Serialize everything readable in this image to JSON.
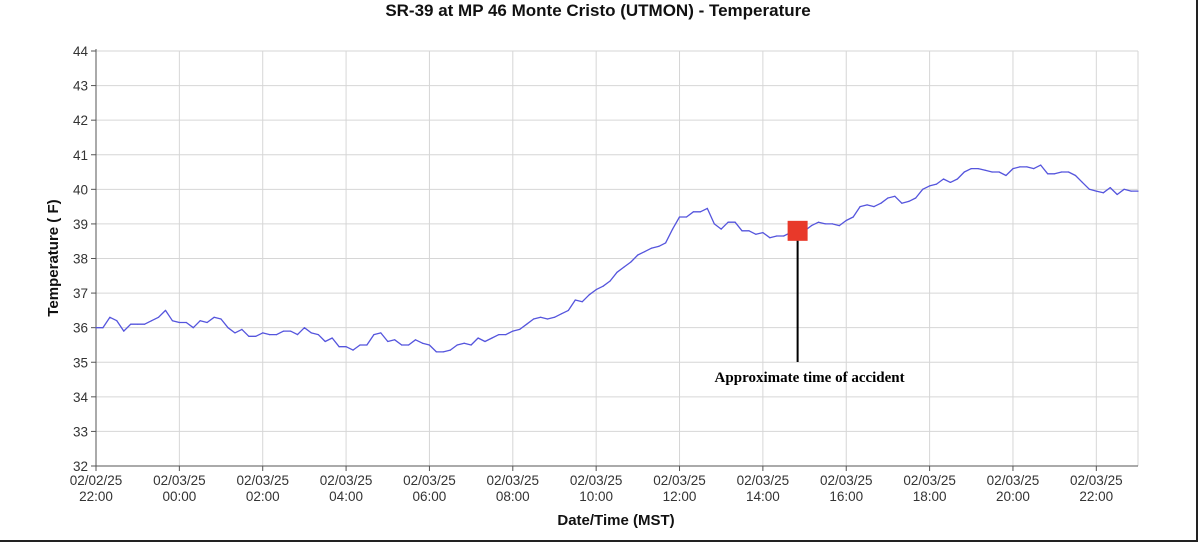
{
  "chart_data": {
    "type": "line",
    "title": "SR-39 at MP 46 Monte Cristo (UTMON) - Temperature",
    "xlabel": "Date/Time (MST)",
    "ylabel": "Temperature ( F)",
    "ylim": [
      32,
      44
    ],
    "xlim": [
      "02/02/25 22:00",
      "02/03/25 23:00"
    ],
    "grid": true,
    "yticks": [
      "32",
      "33",
      "34",
      "35",
      "36",
      "37",
      "38",
      "39",
      "40",
      "41",
      "42",
      "43",
      "44"
    ],
    "xticks": [
      {
        "date": "02/02/25",
        "time": "22:00"
      },
      {
        "date": "02/03/25",
        "time": "00:00"
      },
      {
        "date": "02/03/25",
        "time": "02:00"
      },
      {
        "date": "02/03/25",
        "time": "04:00"
      },
      {
        "date": "02/03/25",
        "time": "06:00"
      },
      {
        "date": "02/03/25",
        "time": "08:00"
      },
      {
        "date": "02/03/25",
        "time": "10:00"
      },
      {
        "date": "02/03/25",
        "time": "12:00"
      },
      {
        "date": "02/03/25",
        "time": "14:00"
      },
      {
        "date": "02/03/25",
        "time": "16:00"
      },
      {
        "date": "02/03/25",
        "time": "18:00"
      },
      {
        "date": "02/03/25",
        "time": "20:00"
      },
      {
        "date": "02/03/25",
        "time": "22:00"
      }
    ],
    "series": [
      {
        "color": "#5555dd",
        "points": [
          [
            "02/02/25 22:00",
            36.0
          ],
          [
            "02/02/25 22:10",
            36.0
          ],
          [
            "02/02/25 22:20",
            36.3
          ],
          [
            "02/02/25 22:30",
            36.2
          ],
          [
            "02/02/25 22:40",
            35.9
          ],
          [
            "02/02/25 22:50",
            36.1
          ],
          [
            "02/02/25 23:00",
            36.1
          ],
          [
            "02/02/25 23:10",
            36.1
          ],
          [
            "02/02/25 23:20",
            36.2
          ],
          [
            "02/02/25 23:30",
            36.3
          ],
          [
            "02/02/25 23:40",
            36.5
          ],
          [
            "02/02/25 23:50",
            36.2
          ],
          [
            "02/03/25 00:00",
            36.15
          ],
          [
            "02/03/25 00:10",
            36.15
          ],
          [
            "02/03/25 00:20",
            36.0
          ],
          [
            "02/03/25 00:30",
            36.2
          ],
          [
            "02/03/25 00:40",
            36.15
          ],
          [
            "02/03/25 00:50",
            36.3
          ],
          [
            "02/03/25 01:00",
            36.25
          ],
          [
            "02/03/25 01:10",
            36.0
          ],
          [
            "02/03/25 01:20",
            35.85
          ],
          [
            "02/03/25 01:30",
            35.95
          ],
          [
            "02/03/25 01:40",
            35.75
          ],
          [
            "02/03/25 01:50",
            35.75
          ],
          [
            "02/03/25 02:00",
            35.85
          ],
          [
            "02/03/25 02:10",
            35.8
          ],
          [
            "02/03/25 02:20",
            35.8
          ],
          [
            "02/03/25 02:30",
            35.9
          ],
          [
            "02/03/25 02:40",
            35.9
          ],
          [
            "02/03/25 02:50",
            35.8
          ],
          [
            "02/03/25 03:00",
            36.0
          ],
          [
            "02/03/25 03:10",
            35.85
          ],
          [
            "02/03/25 03:20",
            35.8
          ],
          [
            "02/03/25 03:30",
            35.6
          ],
          [
            "02/03/25 03:40",
            35.7
          ],
          [
            "02/03/25 03:50",
            35.45
          ],
          [
            "02/03/25 04:00",
            35.45
          ],
          [
            "02/03/25 04:10",
            35.35
          ],
          [
            "02/03/25 04:20",
            35.5
          ],
          [
            "02/03/25 04:30",
            35.5
          ],
          [
            "02/03/25 04:40",
            35.8
          ],
          [
            "02/03/25 04:50",
            35.85
          ],
          [
            "02/03/25 05:00",
            35.6
          ],
          [
            "02/03/25 05:10",
            35.65
          ],
          [
            "02/03/25 05:20",
            35.5
          ],
          [
            "02/03/25 05:30",
            35.5
          ],
          [
            "02/03/25 05:40",
            35.65
          ],
          [
            "02/03/25 05:50",
            35.55
          ],
          [
            "02/03/25 06:00",
            35.5
          ],
          [
            "02/03/25 06:10",
            35.3
          ],
          [
            "02/03/25 06:20",
            35.3
          ],
          [
            "02/03/25 06:30",
            35.35
          ],
          [
            "02/03/25 06:40",
            35.5
          ],
          [
            "02/03/25 06:50",
            35.55
          ],
          [
            "02/03/25 07:00",
            35.5
          ],
          [
            "02/03/25 07:10",
            35.7
          ],
          [
            "02/03/25 07:20",
            35.6
          ],
          [
            "02/03/25 07:30",
            35.7
          ],
          [
            "02/03/25 07:40",
            35.8
          ],
          [
            "02/03/25 07:50",
            35.8
          ],
          [
            "02/03/25 08:00",
            35.9
          ],
          [
            "02/03/25 08:10",
            35.95
          ],
          [
            "02/03/25 08:20",
            36.1
          ],
          [
            "02/03/25 08:30",
            36.25
          ],
          [
            "02/03/25 08:40",
            36.3
          ],
          [
            "02/03/25 08:50",
            36.25
          ],
          [
            "02/03/25 09:00",
            36.3
          ],
          [
            "02/03/25 09:10",
            36.4
          ],
          [
            "02/03/25 09:20",
            36.5
          ],
          [
            "02/03/25 09:30",
            36.8
          ],
          [
            "02/03/25 09:40",
            36.75
          ],
          [
            "02/03/25 09:50",
            36.95
          ],
          [
            "02/03/25 10:00",
            37.1
          ],
          [
            "02/03/25 10:10",
            37.2
          ],
          [
            "02/03/25 10:20",
            37.35
          ],
          [
            "02/03/25 10:30",
            37.6
          ],
          [
            "02/03/25 10:40",
            37.75
          ],
          [
            "02/03/25 10:50",
            37.9
          ],
          [
            "02/03/25 11:00",
            38.1
          ],
          [
            "02/03/25 11:10",
            38.2
          ],
          [
            "02/03/25 11:20",
            38.3
          ],
          [
            "02/03/25 11:30",
            38.35
          ],
          [
            "02/03/25 11:40",
            38.45
          ],
          [
            "02/03/25 11:50",
            38.85
          ],
          [
            "02/03/25 12:00",
            39.2
          ],
          [
            "02/03/25 12:10",
            39.2
          ],
          [
            "02/03/25 12:20",
            39.35
          ],
          [
            "02/03/25 12:30",
            39.35
          ],
          [
            "02/03/25 12:40",
            39.45
          ],
          [
            "02/03/25 12:50",
            39.0
          ],
          [
            "02/03/25 13:00",
            38.85
          ],
          [
            "02/03/25 13:10",
            39.05
          ],
          [
            "02/03/25 13:20",
            39.05
          ],
          [
            "02/03/25 13:30",
            38.8
          ],
          [
            "02/03/25 13:40",
            38.8
          ],
          [
            "02/03/25 13:50",
            38.7
          ],
          [
            "02/03/25 14:00",
            38.75
          ],
          [
            "02/03/25 14:10",
            38.6
          ],
          [
            "02/03/25 14:20",
            38.65
          ],
          [
            "02/03/25 14:30",
            38.65
          ],
          [
            "02/03/25 14:40",
            38.75
          ],
          [
            "02/03/25 14:50",
            38.8
          ],
          [
            "02/03/25 15:00",
            38.8
          ],
          [
            "02/03/25 15:10",
            38.95
          ],
          [
            "02/03/25 15:20",
            39.05
          ],
          [
            "02/03/25 15:30",
            39.0
          ],
          [
            "02/03/25 15:40",
            39.0
          ],
          [
            "02/03/25 15:50",
            38.95
          ],
          [
            "02/03/25 16:00",
            39.1
          ],
          [
            "02/03/25 16:10",
            39.2
          ],
          [
            "02/03/25 16:20",
            39.5
          ],
          [
            "02/03/25 16:30",
            39.55
          ],
          [
            "02/03/25 16:40",
            39.5
          ],
          [
            "02/03/25 16:50",
            39.6
          ],
          [
            "02/03/25 17:00",
            39.75
          ],
          [
            "02/03/25 17:10",
            39.8
          ],
          [
            "02/03/25 17:20",
            39.6
          ],
          [
            "02/03/25 17:30",
            39.65
          ],
          [
            "02/03/25 17:40",
            39.75
          ],
          [
            "02/03/25 17:50",
            40.0
          ],
          [
            "02/03/25 18:00",
            40.1
          ],
          [
            "02/03/25 18:10",
            40.15
          ],
          [
            "02/03/25 18:20",
            40.3
          ],
          [
            "02/03/25 18:30",
            40.2
          ],
          [
            "02/03/25 18:40",
            40.3
          ],
          [
            "02/03/25 18:50",
            40.5
          ],
          [
            "02/03/25 19:00",
            40.6
          ],
          [
            "02/03/25 19:10",
            40.6
          ],
          [
            "02/03/25 19:20",
            40.55
          ],
          [
            "02/03/25 19:30",
            40.5
          ],
          [
            "02/03/25 19:40",
            40.5
          ],
          [
            "02/03/25 19:50",
            40.4
          ],
          [
            "02/03/25 20:00",
            40.6
          ],
          [
            "02/03/25 20:10",
            40.65
          ],
          [
            "02/03/25 20:20",
            40.65
          ],
          [
            "02/03/25 20:30",
            40.6
          ],
          [
            "02/03/25 20:40",
            40.7
          ],
          [
            "02/03/25 20:50",
            40.45
          ],
          [
            "02/03/25 21:00",
            40.45
          ],
          [
            "02/03/25 21:10",
            40.5
          ],
          [
            "02/03/25 21:20",
            40.5
          ],
          [
            "02/03/25 21:30",
            40.4
          ],
          [
            "02/03/25 21:40",
            40.2
          ],
          [
            "02/03/25 21:50",
            40.0
          ],
          [
            "02/03/25 22:00",
            39.95
          ],
          [
            "02/03/25 22:10",
            39.9
          ],
          [
            "02/03/25 22:20",
            40.05
          ],
          [
            "02/03/25 22:30",
            39.85
          ],
          [
            "02/03/25 22:40",
            40.0
          ],
          [
            "02/03/25 22:50",
            39.95
          ],
          [
            "02/03/25 23:00",
            39.95
          ]
        ]
      }
    ],
    "annotation": {
      "text": "Approximate time of accident",
      "x": "02/03/25 14:50",
      "y": 38.8,
      "marker_color": "#e8392a"
    }
  }
}
